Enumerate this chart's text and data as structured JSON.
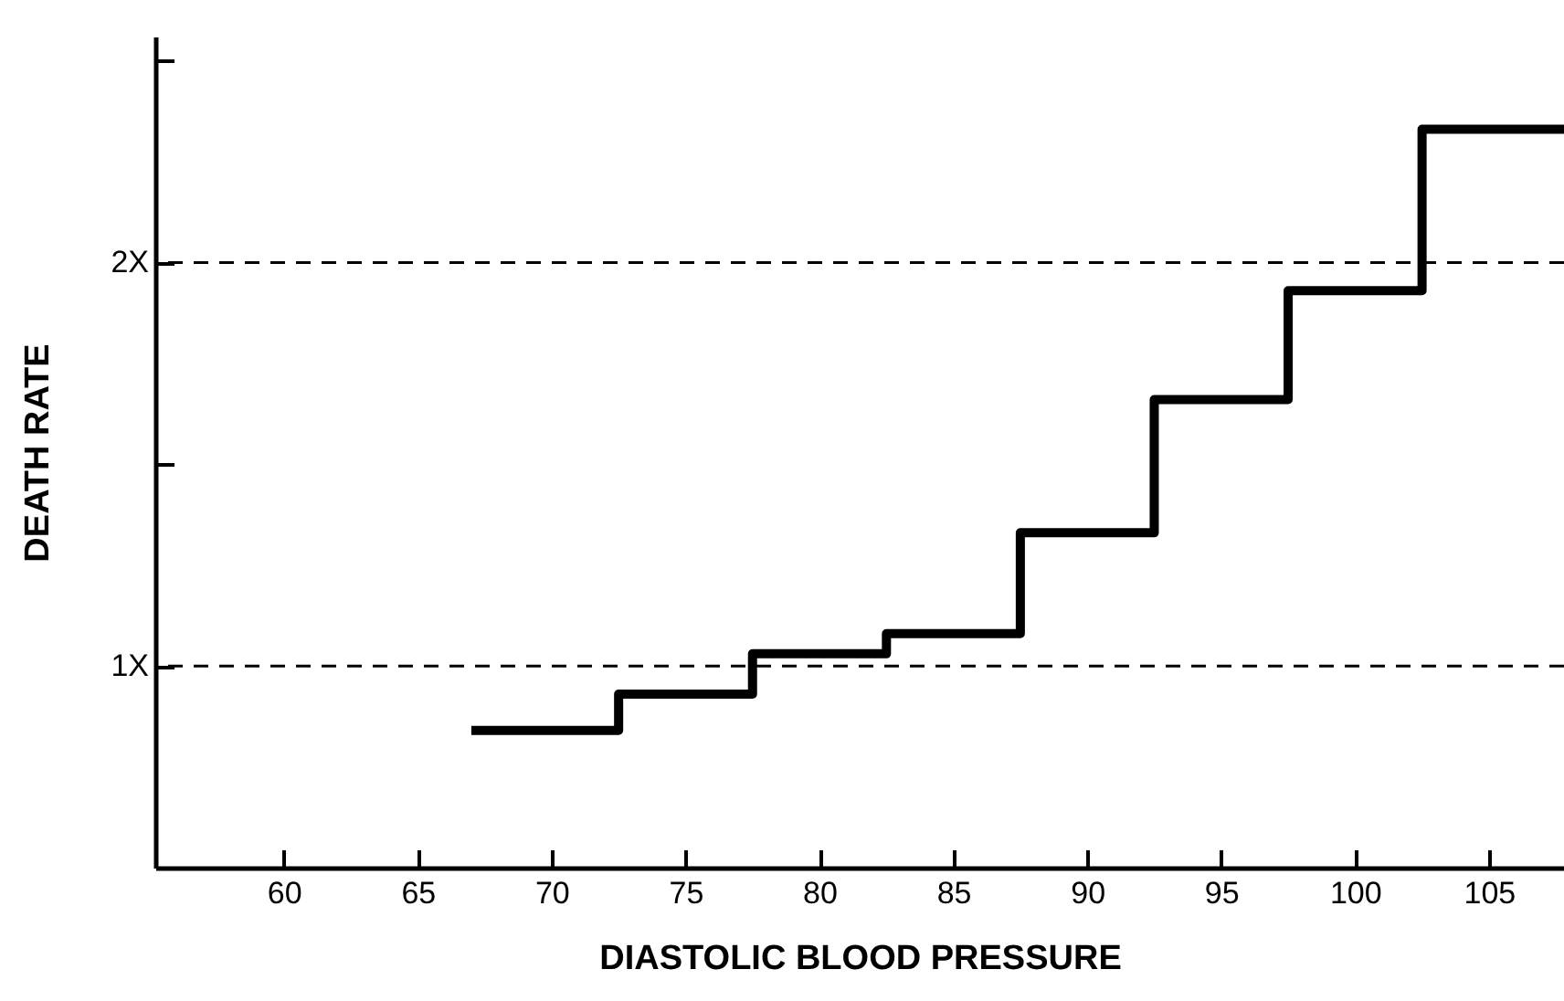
{
  "chart_data": {
    "type": "step",
    "xlabel": "DIASTOLIC BLOOD PRESSURE",
    "ylabel": "DEATH RATE",
    "x": [
      67,
      72.5,
      77.5,
      82.5,
      87.5,
      92.5,
      97.5,
      102.5,
      107.8
    ],
    "series": [
      {
        "color": "#000000",
        "values": [
          0.84,
          0.93,
          1.03,
          1.08,
          1.33,
          1.66,
          1.93,
          2.33,
          2.33
        ]
      }
    ],
    "xlim": [
      55.2,
      107.8
    ],
    "xticks": [
      60,
      65,
      70,
      75,
      80,
      85,
      90,
      95,
      100,
      105
    ],
    "ylim": [
      0.5,
      2.56
    ],
    "yticks": [
      {
        "value": 1,
        "label": "1X"
      },
      {
        "value": 1.5,
        "label": null
      },
      {
        "value": 2,
        "label": "2X"
      },
      {
        "value": 2.5,
        "label": null
      }
    ],
    "ref_lines": [
      {
        "axis": "y",
        "value": 1,
        "line_style": "dashed",
        "color": "#000000"
      },
      {
        "axis": "y",
        "value": 2,
        "line_style": "dashed",
        "color": "#000000"
      }
    ],
    "grid": false,
    "marker": "none",
    "line_style": "solid"
  }
}
